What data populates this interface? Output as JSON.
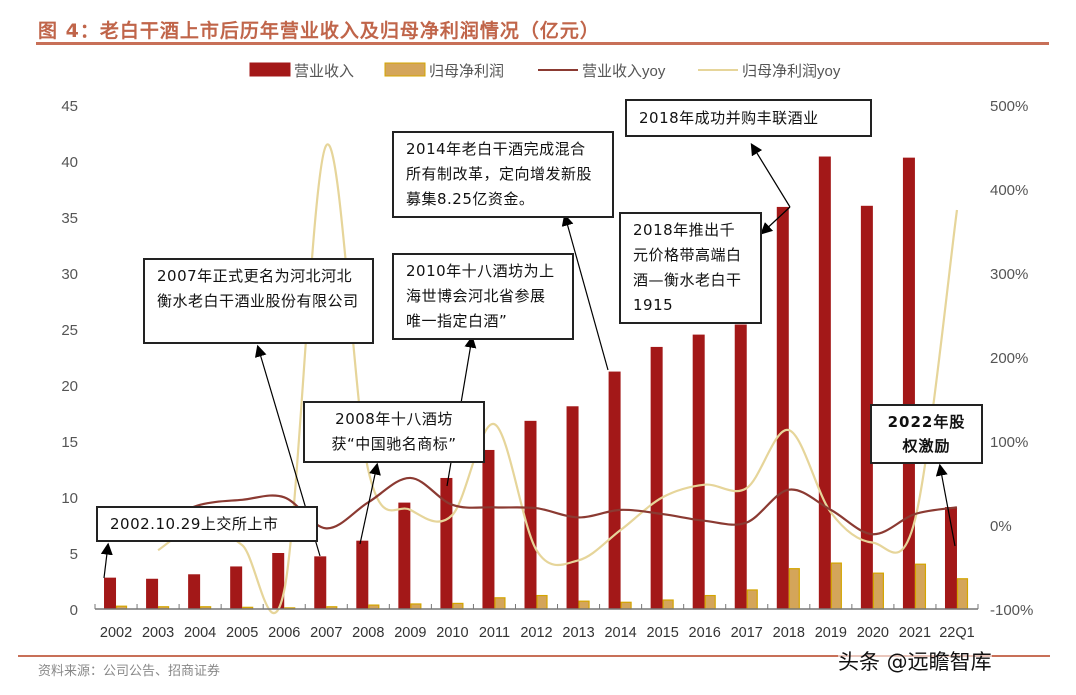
{
  "title": "图 4：老白干酒上市后历年营业收入及归母净利润情况（亿元）",
  "source": "资料来源：公司公告、招商证券",
  "watermark": "头条 @远瞻智库",
  "chart_data": {
    "type": "bar+line",
    "title": "图 4：老白干酒上市后历年营业收入及归母净利润情况（亿元）",
    "categories": [
      "2002",
      "2003",
      "2004",
      "2005",
      "2006",
      "2007",
      "2008",
      "2009",
      "2010",
      "2011",
      "2012",
      "2013",
      "2014",
      "2015",
      "2016",
      "2017",
      "2018",
      "2019",
      "2020",
      "2021",
      "22Q1"
    ],
    "y_left": {
      "range": [
        0,
        45
      ],
      "ticks": [
        "0",
        "5",
        "10",
        "15",
        "20",
        "25",
        "30",
        "35",
        "40",
        "45"
      ]
    },
    "y_right": {
      "range": [
        -100,
        500
      ],
      "unit": "%",
      "ticks": [
        "-100%",
        "0%",
        "100%",
        "200%",
        "300%",
        "400%",
        "500%"
      ]
    },
    "legend_position": "top",
    "grid": false,
    "series": [
      {
        "name": "营业收入",
        "type": "bar",
        "axis": "left",
        "color": "#a31818",
        "values": [
          2.8,
          2.7,
          3.1,
          3.8,
          5.0,
          4.7,
          6.1,
          9.5,
          11.7,
          14.2,
          16.8,
          18.1,
          21.2,
          23.4,
          24.5,
          25.4,
          35.9,
          40.4,
          36.0,
          40.3,
          9.1
        ]
      },
      {
        "name": "归母净利润",
        "type": "bar",
        "axis": "left",
        "color": "#d4a55a",
        "border": "#d4a500",
        "values": [
          0.25,
          0.2,
          0.2,
          0.15,
          0.1,
          0.2,
          0.35,
          0.45,
          0.5,
          1.0,
          1.2,
          0.7,
          0.6,
          0.8,
          1.2,
          1.7,
          3.6,
          4.1,
          3.2,
          4.0,
          2.7
        ]
      },
      {
        "name": "营业收入yoy",
        "type": "line",
        "axis": "right",
        "color": "#8b3a32",
        "values": [
          null,
          3,
          24,
          30,
          33,
          -4,
          27,
          56,
          24,
          21,
          20,
          9,
          18,
          13,
          5,
          3,
          42,
          18,
          -11,
          13,
          21
        ]
      },
      {
        "name": "归母净利润yoy",
        "type": "line",
        "axis": "right",
        "color": "#e6d59a",
        "values": [
          null,
          -30,
          0,
          -24,
          -78,
          452,
          65,
          18,
          12,
          120,
          -30,
          -42,
          -6,
          33,
          48,
          44,
          113,
          15,
          -21,
          6,
          375
        ]
      }
    ],
    "annotations": [
      {
        "text": "2002.10.29上交所上市"
      },
      {
        "text": "2007年正式更名为河北河北衡水老白干酒业股份有限公司"
      },
      {
        "text": "2008年十八酒坊获“中国驰名商标”"
      },
      {
        "text": "2010年十八酒坊为上海世博会河北省参展唯一指定白酒”"
      },
      {
        "text": "2014年老白干酒完成混合所有制改革，定向增发新股募集8.25亿资金。"
      },
      {
        "text": "2018年成功并购丰联酒业"
      },
      {
        "text": "2018年推出千元价格带高端白酒—衡水老白干1915"
      },
      {
        "text": "2022年股权激励"
      }
    ]
  }
}
